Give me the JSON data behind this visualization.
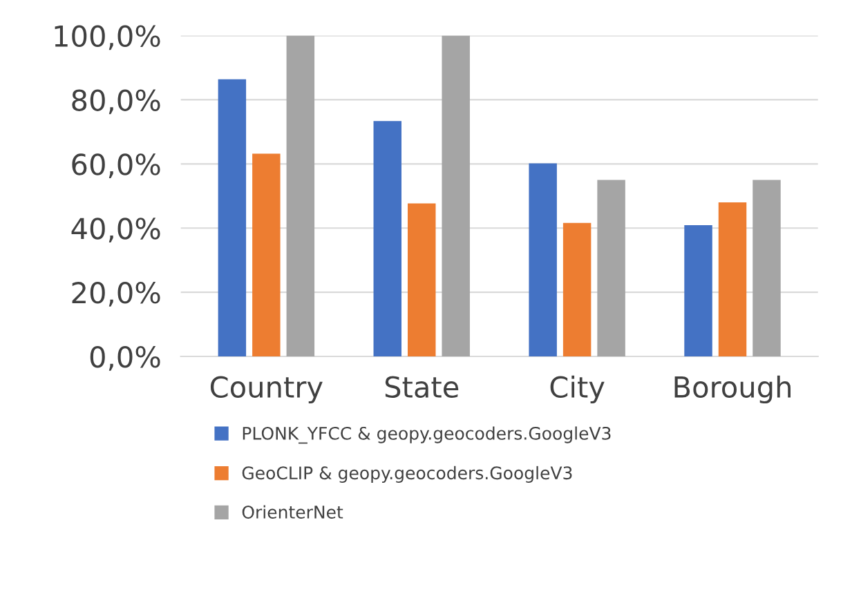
{
  "chart_data": {
    "type": "bar",
    "categories": [
      "Country",
      "State",
      "City",
      "Borough"
    ],
    "series": [
      {
        "name": "PLONK_YFCC & geopy.geocoders.GoogleV3",
        "color": "#4472c4",
        "values": [
          86.4,
          73.4,
          60.2,
          40.9
        ]
      },
      {
        "name": "GeoCLIP & geopy.geocoders.GoogleV3",
        "color": "#ed7d31",
        "values": [
          63.2,
          47.7,
          41.6,
          48.0
        ]
      },
      {
        "name": "OrienterNet",
        "color": "#a5a5a5",
        "values": [
          100,
          100,
          55,
          55
        ]
      }
    ],
    "ylim": [
      0,
      100
    ],
    "yticks": [
      {
        "value": 0,
        "label": "0,0%"
      },
      {
        "value": 20,
        "label": "20,0%"
      },
      {
        "value": 40,
        "label": "40,0%"
      },
      {
        "value": 60,
        "label": "60,0%"
      },
      {
        "value": 80,
        "label": "80,0%"
      },
      {
        "value": 100,
        "label": "100,0%"
      }
    ],
    "grid": "y",
    "legend": "bottom"
  }
}
